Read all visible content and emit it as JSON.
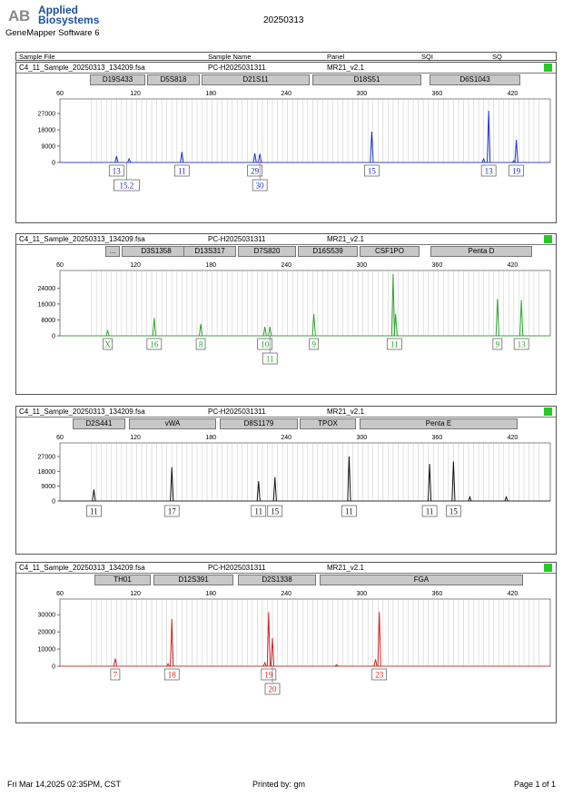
{
  "header": {
    "logo_line1": "Applied",
    "logo_line2": "Biosystems",
    "software": "GeneMapper Software 6",
    "run_date": "20250313"
  },
  "columns": {
    "sample_file": "Sample File",
    "sample_name": "Sample Name",
    "panel": "Panel",
    "sqi": "SQI",
    "sq": "SQ"
  },
  "colors": {
    "blue": "#1f2fd0",
    "green": "#2aa62a",
    "black": "#111111",
    "red": "#d42424",
    "sq_pass": "#22cc22"
  },
  "x_ticks": [
    60,
    120,
    180,
    240,
    300,
    360,
    420
  ],
  "chart_data": [
    {
      "type": "line",
      "dye": "blue",
      "sample_file": "C4_11_Sample_20250313_134209.fsa",
      "sample_name": "PC-H2025031311",
      "panel": "MR21_v2.1",
      "xlim": [
        60,
        450
      ],
      "ylim": [
        0,
        33000
      ],
      "y_ticks": [
        0,
        9000,
        18000,
        27000
      ],
      "markers": [
        "D19S433",
        "D5S818",
        "D21S11",
        "D18S51",
        "D6S1043"
      ],
      "peaks": [
        {
          "x": 105,
          "y": 3500
        },
        {
          "x": 115,
          "y": 2000
        },
        {
          "x": 157,
          "y": 5800
        },
        {
          "x": 215,
          "y": 5000
        },
        {
          "x": 219,
          "y": 4800
        },
        {
          "x": 308,
          "y": 17000
        },
        {
          "x": 397,
          "y": 2000
        },
        {
          "x": 401,
          "y": 28500
        },
        {
          "x": 423,
          "y": 12500
        },
        {
          "x": 421,
          "y": 1000
        }
      ],
      "allele_labels": [
        {
          "x": 105,
          "text": "13",
          "row": 0
        },
        {
          "x": 113,
          "text": "15.2",
          "row": 1
        },
        {
          "x": 157,
          "text": "11",
          "row": 0
        },
        {
          "x": 215,
          "text": "29",
          "row": 0
        },
        {
          "x": 219,
          "text": "30",
          "row": 1
        },
        {
          "x": 308,
          "text": "15",
          "row": 0
        },
        {
          "x": 401,
          "text": "13",
          "row": 0
        },
        {
          "x": 423,
          "text": "19",
          "row": 0
        }
      ]
    },
    {
      "type": "line",
      "dye": "green",
      "sample_file": "C4_11_Sample_20250313_134209.fsa",
      "sample_name": "PC-H2025031311",
      "panel": "MR21_v2.1",
      "xlim": [
        60,
        450
      ],
      "ylim": [
        0,
        31000
      ],
      "y_ticks": [
        0,
        8000,
        16000,
        24000
      ],
      "markers": [
        "...",
        "D3S1358",
        "D13S317",
        "D7S820",
        "D16S539",
        "CSF1PO",
        "Penta D"
      ],
      "peaks": [
        {
          "x": 98,
          "y": 2500
        },
        {
          "x": 135,
          "y": 9000
        },
        {
          "x": 172,
          "y": 6000
        },
        {
          "x": 223,
          "y": 4500
        },
        {
          "x": 227,
          "y": 4500
        },
        {
          "x": 262,
          "y": 11000
        },
        {
          "x": 325,
          "y": 31000
        },
        {
          "x": 327,
          "y": 11000
        },
        {
          "x": 408,
          "y": 18500
        },
        {
          "x": 427,
          "y": 18000
        }
      ],
      "allele_labels": [
        {
          "x": 98,
          "text": "X",
          "row": 0
        },
        {
          "x": 135,
          "text": "16",
          "row": 0
        },
        {
          "x": 172,
          "text": "8",
          "row": 0
        },
        {
          "x": 223,
          "text": "10",
          "row": 0
        },
        {
          "x": 227,
          "text": "11",
          "row": 1
        },
        {
          "x": 262,
          "text": "9",
          "row": 0
        },
        {
          "x": 326,
          "text": "11",
          "row": 0
        },
        {
          "x": 408,
          "text": "9",
          "row": 0
        },
        {
          "x": 427,
          "text": "13",
          "row": 0
        }
      ]
    },
    {
      "type": "line",
      "dye": "black",
      "sample_file": "C4_11_Sample_20250313_134209.fsa",
      "sample_name": "PC-H2025031311",
      "panel": "MR21_v2.1",
      "xlim": [
        60,
        450
      ],
      "ylim": [
        0,
        33000
      ],
      "y_ticks": [
        0,
        9000,
        18000,
        27000
      ],
      "markers": [
        "D2S441",
        "vWA",
        "D8S1179",
        "TPOX",
        "Penta E"
      ],
      "peaks": [
        {
          "x": 87,
          "y": 7000
        },
        {
          "x": 149,
          "y": 20500
        },
        {
          "x": 218,
          "y": 12000
        },
        {
          "x": 231,
          "y": 14500
        },
        {
          "x": 290,
          "y": 27000
        },
        {
          "x": 354,
          "y": 22500
        },
        {
          "x": 373,
          "y": 24000
        },
        {
          "x": 386,
          "y": 2500
        },
        {
          "x": 415,
          "y": 2500
        }
      ],
      "allele_labels": [
        {
          "x": 87,
          "text": "11",
          "row": 0
        },
        {
          "x": 149,
          "text": "17",
          "row": 0
        },
        {
          "x": 218,
          "text": "11",
          "row": 0
        },
        {
          "x": 231,
          "text": "15",
          "row": 0
        },
        {
          "x": 290,
          "text": "11",
          "row": 0
        },
        {
          "x": 354,
          "text": "11",
          "row": 0
        },
        {
          "x": 373,
          "text": "15",
          "row": 0
        }
      ]
    },
    {
      "type": "line",
      "dye": "red",
      "sample_file": "C4_11_Sample_20250313_134209.fsa",
      "sample_name": "PC-H2025031311",
      "panel": "MR21_v2.1",
      "xlim": [
        60,
        450
      ],
      "ylim": [
        0,
        37000
      ],
      "y_ticks": [
        0,
        10000,
        20000,
        30000
      ],
      "markers": [
        "TH01",
        "D12S391",
        "D2S1338",
        "FGA"
      ],
      "peaks": [
        {
          "x": 104,
          "y": 4500
        },
        {
          "x": 149,
          "y": 27500
        },
        {
          "x": 146,
          "y": 1500
        },
        {
          "x": 226,
          "y": 31500
        },
        {
          "x": 229,
          "y": 16500
        },
        {
          "x": 223,
          "y": 2000
        },
        {
          "x": 314,
          "y": 31500
        },
        {
          "x": 311,
          "y": 4000
        },
        {
          "x": 280,
          "y": 800
        }
      ],
      "allele_labels": [
        {
          "x": 104,
          "text": "7",
          "row": 0
        },
        {
          "x": 149,
          "text": "18",
          "row": 0
        },
        {
          "x": 226,
          "text": "19",
          "row": 0
        },
        {
          "x": 229,
          "text": "20",
          "row": 1
        },
        {
          "x": 314,
          "text": "23",
          "row": 0
        }
      ]
    }
  ],
  "footer": {
    "printed_at": "Fri Mar 14,2025 02:35PM, CST",
    "printed_by": "Printed by: gm",
    "page": "Page 1 of 1"
  }
}
